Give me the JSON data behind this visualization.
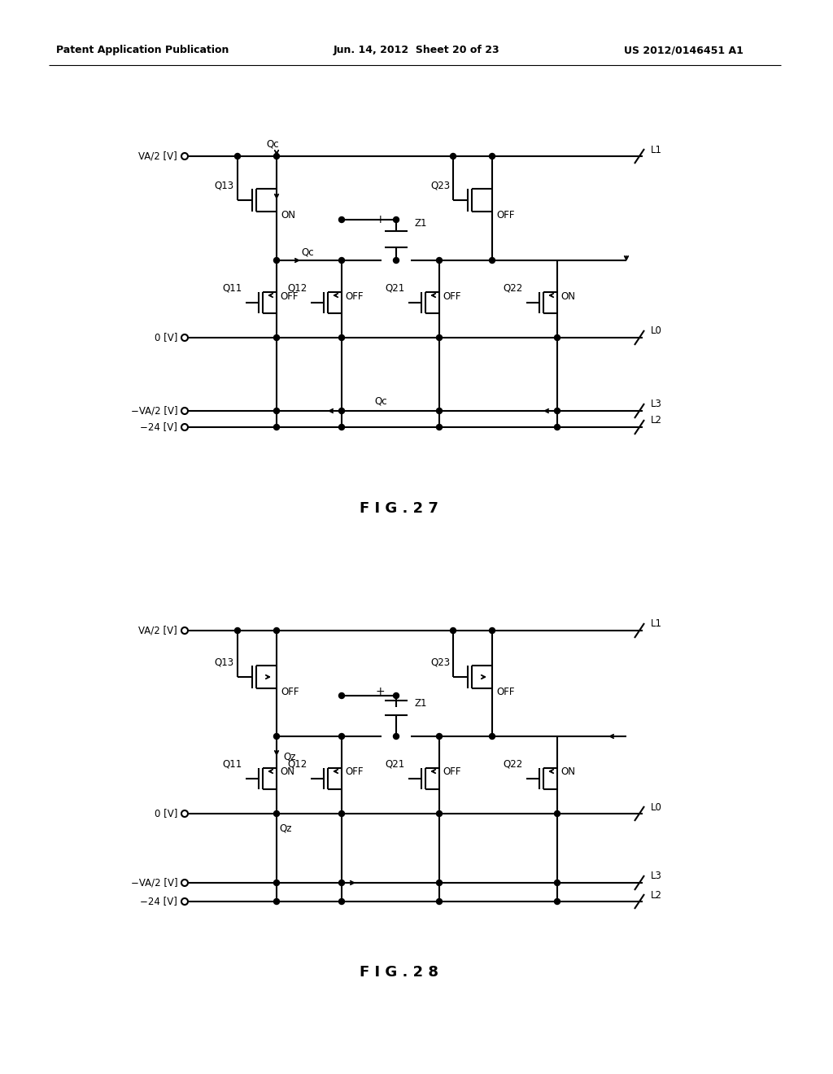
{
  "header_left": "Patent Application Publication",
  "header_mid": "Jun. 14, 2012  Sheet 20 of 23",
  "header_right": "US 2012/0146451 A1",
  "fig27_label": "F I G . 2 7",
  "fig28_label": "F I G . 2 8",
  "bg_color": "#ffffff"
}
